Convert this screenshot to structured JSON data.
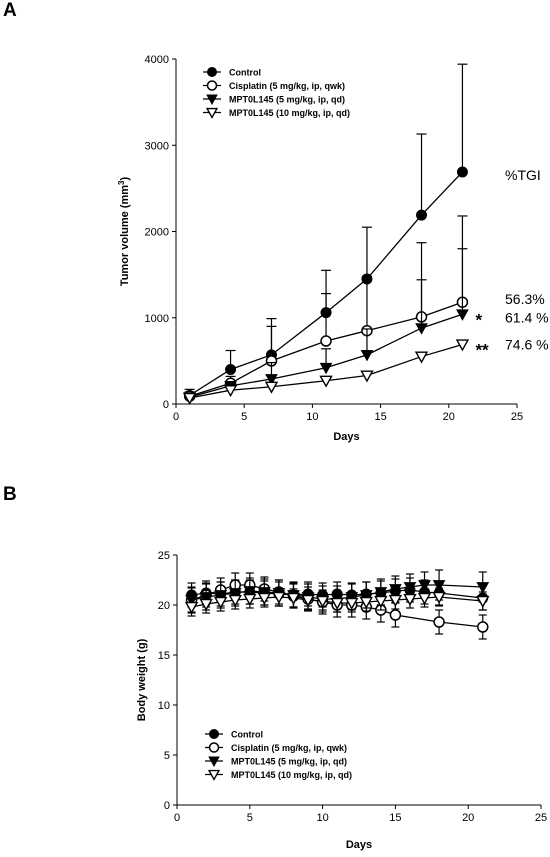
{
  "chart_data": [
    {
      "panel": "A",
      "type": "line",
      "xlabel": "Days",
      "ylabel": "Tumor volume (mm3)",
      "xlim": [
        0,
        25
      ],
      "ylim": [
        0,
        4000
      ],
      "xticks": [
        0,
        5,
        10,
        15,
        20,
        25
      ],
      "yticks": [
        0,
        1000,
        2000,
        3000,
        4000
      ],
      "legend_position": "top-left",
      "annotations": {
        "header": "%TGI",
        "labels": [
          {
            "series": 1,
            "stars": "",
            "text": "56.3%"
          },
          {
            "series": 2,
            "stars": "*",
            "text": "61.4 %"
          },
          {
            "series": 3,
            "stars": "**",
            "text": "74.6 %"
          }
        ]
      },
      "series": [
        {
          "name": "Control",
          "marker": "filled-circle",
          "x": [
            1,
            4,
            7,
            11,
            14,
            18,
            21
          ],
          "values": [
            100,
            400,
            570,
            1060,
            1450,
            2190,
            2690
          ],
          "err": [
            70,
            220,
            420,
            490,
            600,
            940,
            1250
          ]
        },
        {
          "name": "Cisplatin (5 mg/kg, ip, qwk)",
          "marker": "open-circle",
          "x": [
            1,
            4,
            7,
            11,
            14,
            18,
            21
          ],
          "values": [
            90,
            240,
            500,
            730,
            850,
            1010,
            1180
          ],
          "err": [
            50,
            80,
            400,
            550,
            630,
            860,
            1000
          ]
        },
        {
          "name": "MPT0L145 (5 mg/kg, ip, qd)",
          "marker": "filled-triangle",
          "x": [
            1,
            4,
            7,
            11,
            14,
            18,
            21
          ],
          "values": [
            80,
            210,
            290,
            420,
            570,
            880,
            1040
          ],
          "err": [
            40,
            50,
            190,
            220,
            300,
            560,
            760
          ]
        },
        {
          "name": "MPT0L145 (10 mg/kg, ip, qd)",
          "marker": "open-triangle",
          "x": [
            1,
            4,
            7,
            11,
            14,
            18,
            21
          ],
          "values": [
            70,
            160,
            200,
            270,
            330,
            550,
            690
          ],
          "err": [
            30,
            40,
            40,
            40,
            40,
            40,
            40
          ]
        }
      ]
    },
    {
      "panel": "B",
      "type": "line",
      "xlabel": "Days",
      "ylabel": "Body weight (g)",
      "xlim": [
        0,
        25
      ],
      "ylim": [
        0,
        25
      ],
      "xticks": [
        0,
        5,
        10,
        15,
        20,
        25
      ],
      "yticks": [
        0,
        5,
        10,
        15,
        20,
        25
      ],
      "legend_position": "bottom-left",
      "series": [
        {
          "name": "Control",
          "marker": "filled-circle",
          "x": [
            1,
            2,
            3,
            4,
            5,
            6,
            7,
            8,
            9,
            10,
            11,
            12,
            13,
            14,
            15,
            16,
            17,
            18,
            21
          ],
          "values": [
            21.0,
            21.2,
            21.1,
            21.3,
            21.3,
            21.2,
            21.1,
            21.0,
            21.1,
            21.0,
            21.1,
            21.0,
            21.1,
            21.2,
            21.4,
            21.5,
            21.3,
            21.2,
            20.7
          ],
          "err": [
            1.2,
            1.2,
            1.2,
            1.2,
            1.2,
            1.2,
            1.2,
            1.2,
            1.2,
            1.2,
            1.2,
            1.2,
            1.2,
            1.2,
            1.2,
            1.2,
            1.2,
            1.2,
            1.2
          ]
        },
        {
          "name": "Cisplatin (5 mg/kg, ip, qwk)",
          "marker": "open-circle",
          "x": [
            1,
            2,
            3,
            4,
            5,
            6,
            7,
            8,
            9,
            10,
            11,
            12,
            13,
            14,
            15,
            18,
            21
          ],
          "values": [
            20.5,
            21.0,
            21.5,
            22.0,
            22.0,
            21.6,
            21.3,
            20.9,
            20.6,
            20.3,
            20.0,
            20.0,
            19.8,
            19.5,
            19.0,
            18.3,
            17.8
          ],
          "err": [
            1.2,
            1.2,
            1.2,
            1.2,
            1.2,
            1.2,
            1.2,
            1.2,
            1.2,
            1.2,
            1.2,
            1.2,
            1.2,
            1.2,
            1.2,
            1.2,
            1.2
          ]
        },
        {
          "name": "MPT0L145 (5 mg/kg, ip, qd)",
          "marker": "filled-triangle",
          "x": [
            1,
            2,
            3,
            4,
            5,
            6,
            7,
            8,
            9,
            10,
            11,
            12,
            13,
            14,
            15,
            16,
            17,
            18,
            21
          ],
          "values": [
            20.5,
            20.8,
            21.0,
            21.2,
            21.4,
            21.3,
            21.2,
            21.0,
            20.8,
            20.6,
            20.6,
            20.8,
            21.0,
            21.3,
            21.6,
            21.8,
            22.0,
            22.0,
            21.8
          ],
          "err": [
            1.3,
            1.3,
            1.3,
            1.3,
            1.3,
            1.3,
            1.3,
            1.3,
            1.3,
            1.3,
            1.3,
            1.3,
            1.3,
            1.3,
            1.3,
            1.3,
            1.3,
            1.5,
            1.5
          ]
        },
        {
          "name": "MPT0L145 (10 mg/kg, ip, qd)",
          "marker": "open-triangle",
          "x": [
            1,
            2,
            3,
            4,
            5,
            6,
            7,
            8,
            9,
            10,
            11,
            12,
            13,
            14,
            15,
            16,
            17,
            18,
            21
          ],
          "values": [
            19.8,
            20.1,
            20.3,
            20.5,
            20.6,
            20.7,
            20.8,
            20.7,
            20.5,
            20.4,
            20.2,
            20.2,
            20.3,
            20.4,
            20.5,
            20.6,
            20.7,
            20.8,
            20.4
          ],
          "err": [
            0.9,
            0.9,
            0.9,
            0.9,
            0.9,
            0.9,
            0.9,
            0.9,
            0.9,
            0.9,
            0.9,
            0.9,
            0.9,
            0.9,
            0.9,
            0.9,
            0.9,
            0.9,
            0.9
          ]
        }
      ]
    }
  ]
}
